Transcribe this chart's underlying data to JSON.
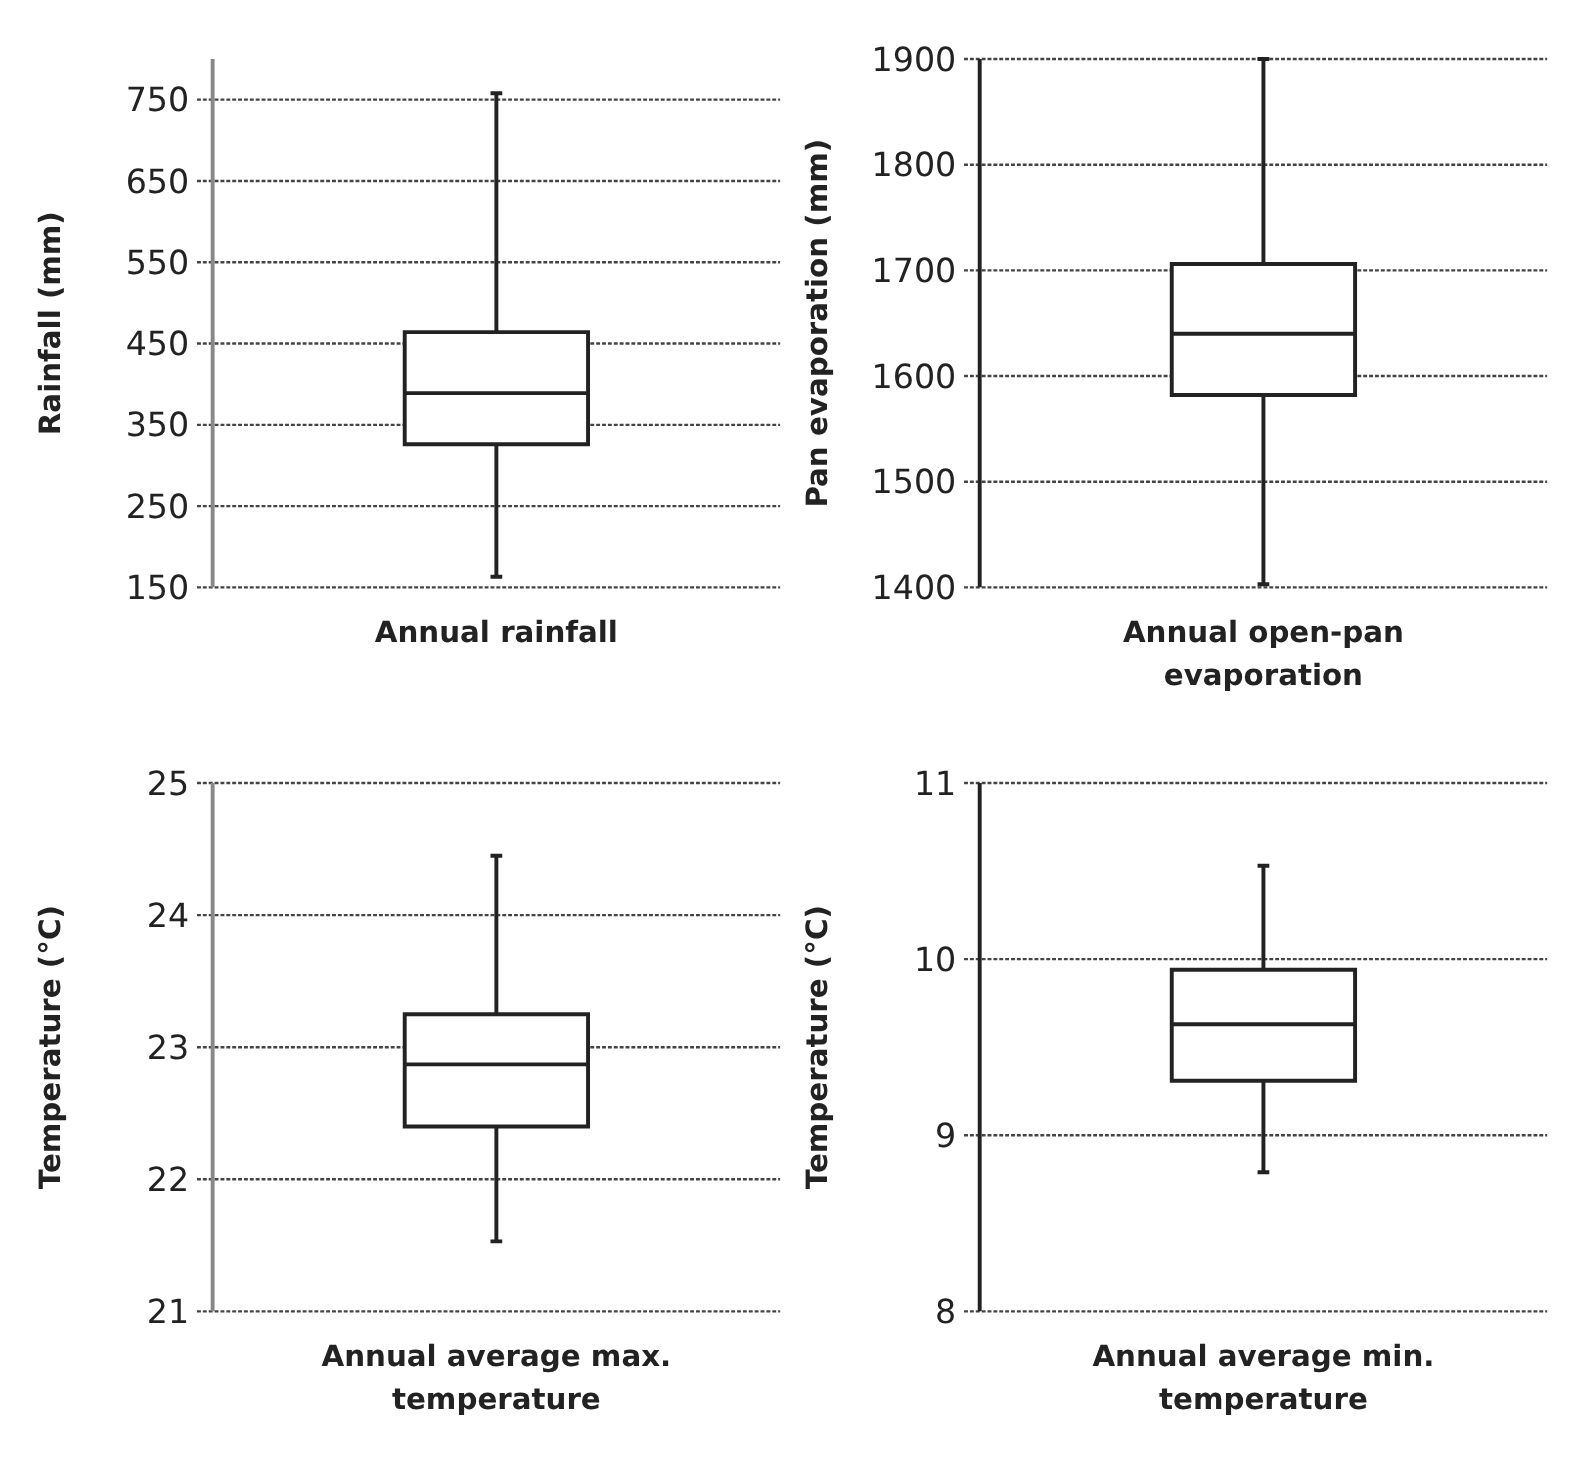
{
  "chart_data": [
    {
      "type": "box",
      "categories": [
        null
      ],
      "xlabel": "Annual rainfall",
      "ylabel": "Rainfall (mm)",
      "ylim": [
        150,
        800
      ],
      "yticks": [
        150,
        250,
        350,
        450,
        550,
        650,
        750
      ],
      "grid": "y",
      "series": [
        {
          "color": "#ffffff",
          "boxes": [
            {
              "low": 163,
              "q1": 326,
              "median": 389,
              "q3": 464,
              "high": 758
            }
          ]
        }
      ]
    },
    {
      "type": "box",
      "categories": [
        null
      ],
      "xlabel": "Annual open-pan evaporation",
      "ylabel": "Pan evaporation (mm)",
      "ylim": [
        1400,
        1900
      ],
      "yticks": [
        1400,
        1500,
        1600,
        1700,
        1800,
        1900
      ],
      "grid": "y",
      "series": [
        {
          "color": "#ffffff",
          "boxes": [
            {
              "low": 1403,
              "q1": 1582,
              "median": 1640,
              "q3": 1706,
              "high": 1900
            }
          ]
        }
      ]
    },
    {
      "type": "box",
      "categories": [
        null
      ],
      "xlabel": "Annual average max. temperature",
      "ylabel": "Temperature (°C)",
      "ylim": [
        21,
        25
      ],
      "yticks": [
        21,
        22,
        23,
        24,
        25
      ],
      "grid": "y",
      "series": [
        {
          "color": "#ffffff",
          "boxes": [
            {
              "low": 21.53,
              "q1": 22.4,
              "median": 22.87,
              "q3": 23.25,
              "high": 24.45
            }
          ]
        }
      ]
    },
    {
      "type": "box",
      "categories": [
        null
      ],
      "xlabel": "Annual average min. temperature",
      "ylabel": "Temperature (°C)",
      "ylim": [
        8,
        11
      ],
      "yticks": [
        8,
        9,
        10,
        11
      ],
      "grid": "y",
      "series": [
        {
          "color": "#ffffff",
          "boxes": [
            {
              "low": 8.79,
              "q1": 9.31,
              "median": 9.63,
              "q3": 9.94,
              "high": 10.53
            }
          ]
        }
      ]
    }
  ]
}
